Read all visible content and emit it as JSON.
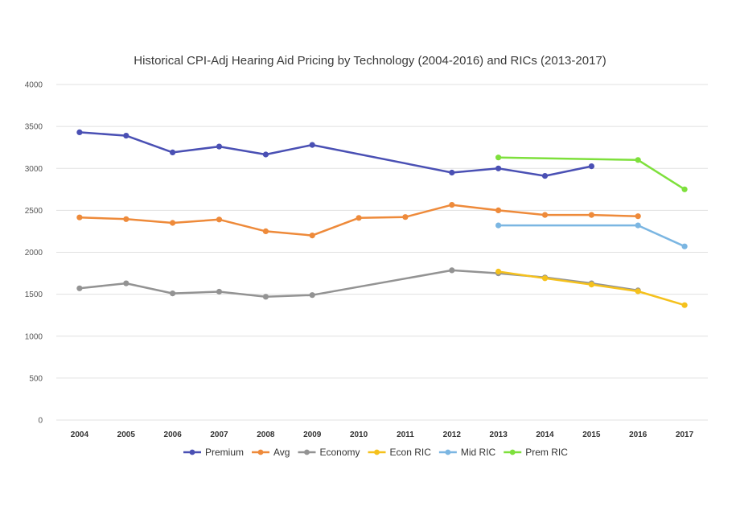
{
  "chart_data": {
    "type": "line",
    "title": "Historical CPI-Adj  Hearing Aid Pricing by Technology  (2004-2016) and RICs (2013-2017)",
    "xlabel": "",
    "ylabel": "",
    "categories": [
      "2004",
      "2005",
      "2006",
      "2007",
      "2008",
      "2009",
      "2010",
      "2011",
      "2012",
      "2013",
      "2014",
      "2015",
      "2016",
      "2017"
    ],
    "ylim": [
      0,
      4000
    ],
    "yticks": [
      "0",
      "500",
      "1000",
      "1500",
      "2000",
      "2500",
      "3000",
      "3500",
      "4000"
    ],
    "grid": true,
    "legend_position": "bottom",
    "series": [
      {
        "name": "Premium",
        "color": "#4a50b4",
        "values": [
          3430,
          3390,
          3190,
          3260,
          3165,
          3280,
          null,
          null,
          2950,
          3000,
          2910,
          3025,
          null,
          null
        ]
      },
      {
        "name": "Avg",
        "color": "#ee8a3a",
        "values": [
          2415,
          2395,
          2350,
          2390,
          2250,
          2200,
          2410,
          2420,
          2565,
          2500,
          2445,
          2445,
          2430,
          null
        ]
      },
      {
        "name": "Economy",
        "color": "#939393",
        "values": [
          1570,
          1630,
          1510,
          1530,
          1470,
          1490,
          null,
          null,
          1785,
          1750,
          1700,
          1630,
          1545,
          null
        ]
      },
      {
        "name": "Econ RIC",
        "color": "#f5c11c",
        "values": [
          null,
          null,
          null,
          null,
          null,
          null,
          null,
          null,
          null,
          1770,
          1690,
          1615,
          1535,
          1370
        ]
      },
      {
        "name": "Mid RIC",
        "color": "#7bb6e2",
        "values": [
          null,
          null,
          null,
          null,
          null,
          null,
          null,
          null,
          null,
          2320,
          null,
          null,
          2320,
          2070
        ]
      },
      {
        "name": "Prem RIC",
        "color": "#7ee03c",
        "values": [
          null,
          null,
          null,
          null,
          null,
          null,
          null,
          null,
          null,
          3130,
          null,
          null,
          3100,
          2750
        ]
      }
    ]
  }
}
